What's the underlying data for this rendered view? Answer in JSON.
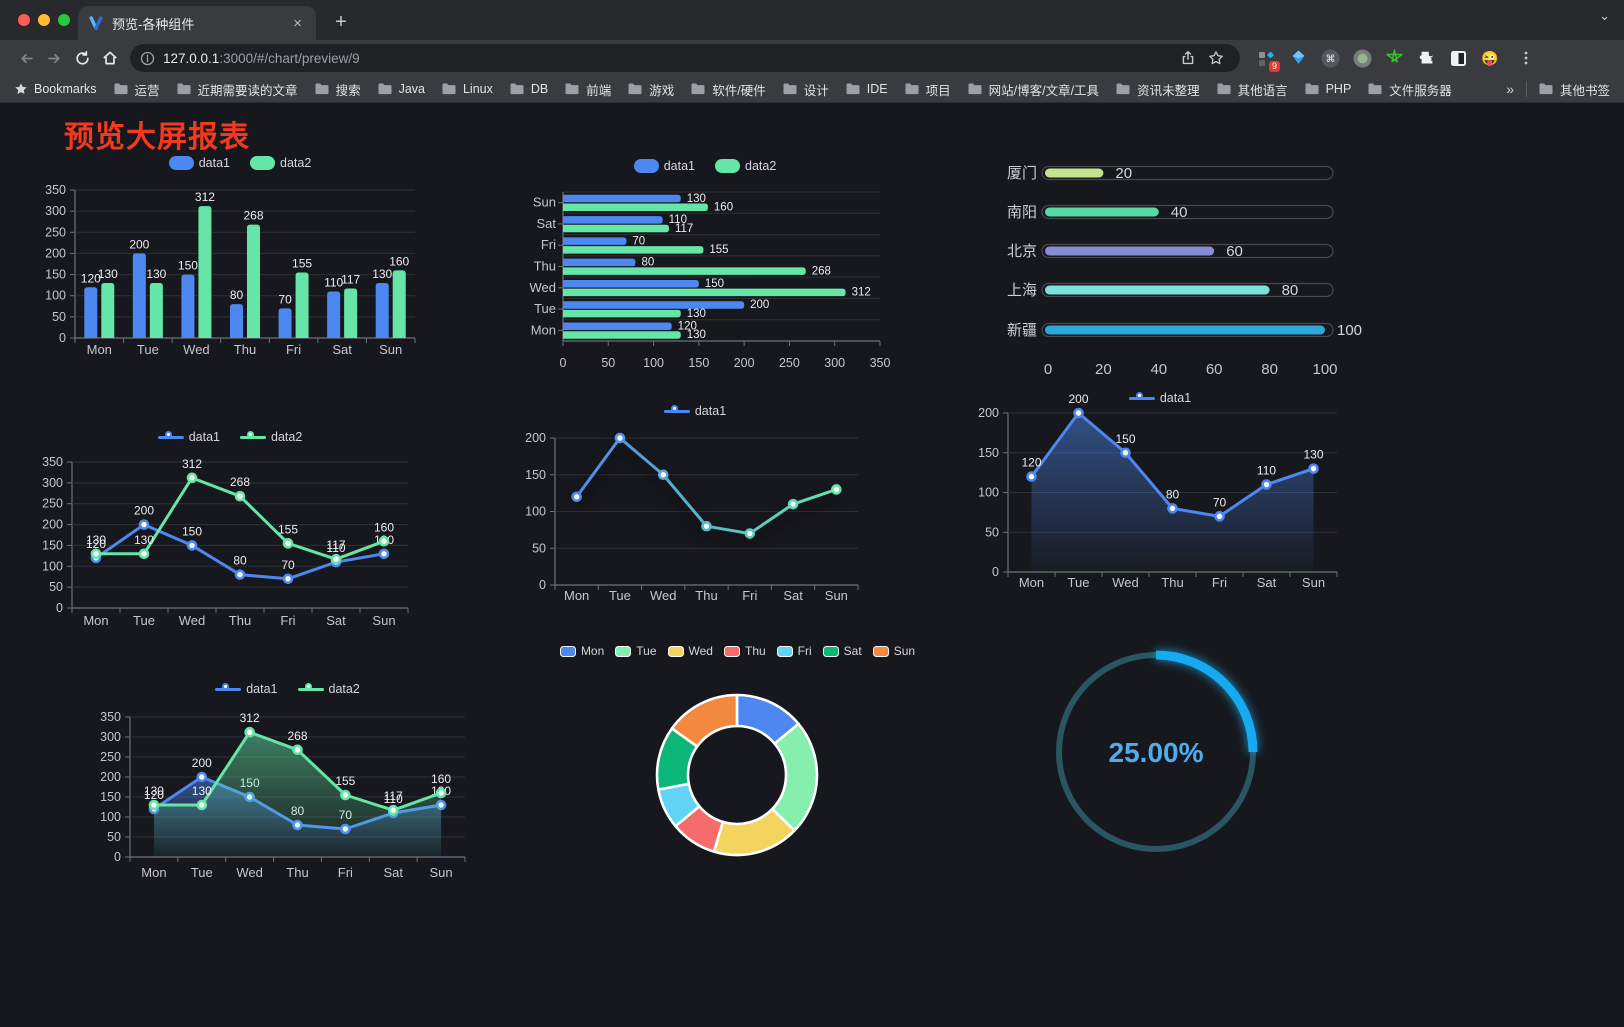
{
  "browser": {
    "traffic_lights": [
      "#ff5f57",
      "#febc2e",
      "#28c840"
    ],
    "tab": {
      "title": "预览-各种组件",
      "close": "×"
    },
    "new_tab": "+",
    "url_host": "127.0.0.1",
    "url_rest": ":3000/#/chart/preview/9",
    "extensions_badge": "9",
    "bookmarks_bar": {
      "star_label": "Bookmarks",
      "folders": [
        "运营",
        "近期需要读的文章",
        "搜索",
        "Java",
        "Linux",
        "DB",
        "前端",
        "游戏",
        "软件/硬件",
        "设计",
        "IDE",
        "项目",
        "网站/博客/文章/工具",
        "资讯未整理",
        "其他语言",
        "PHP",
        "文件服务器"
      ],
      "overflow": "»",
      "other": "其他书签"
    }
  },
  "page": {
    "heading": "预览大屏报表",
    "heading_color": "#f5391f",
    "background": "#17181d"
  },
  "chart_data": [
    {
      "id": "bar-grouped",
      "type": "bar",
      "categories": [
        "Mon",
        "Tue",
        "Wed",
        "Thu",
        "Fri",
        "Sat",
        "Sun"
      ],
      "series": [
        {
          "name": "data1",
          "color": "#4d88f0",
          "values": [
            120,
            200,
            150,
            80,
            70,
            110,
            130
          ]
        },
        {
          "name": "data2",
          "color": "#65e6a7",
          "values": [
            130,
            130,
            312,
            268,
            155,
            117,
            160
          ]
        }
      ],
      "ylim": [
        0,
        350
      ],
      "ytick": 50,
      "labels": true,
      "grid": true,
      "legend_position": "top"
    },
    {
      "id": "bar-horizontal",
      "type": "hbar",
      "categories": [
        "Mon",
        "Tue",
        "Wed",
        "Thu",
        "Fri",
        "Sat",
        "Sun"
      ],
      "series": [
        {
          "name": "data1",
          "color": "#4d88f0",
          "values": [
            120,
            200,
            150,
            80,
            70,
            110,
            130
          ]
        },
        {
          "name": "data2",
          "color": "#65e6a7",
          "values": [
            130,
            130,
            312,
            268,
            155,
            117,
            160
          ]
        }
      ],
      "xlim": [
        0,
        350
      ],
      "xtick": 50,
      "labels": true,
      "grid": true,
      "legend_position": "top"
    },
    {
      "id": "progress-bars",
      "type": "progress",
      "rows": [
        {
          "label": "厦门",
          "value": 20,
          "color": "#c5e38b"
        },
        {
          "label": "南阳",
          "value": 40,
          "color": "#57d8a5"
        },
        {
          "label": "北京",
          "value": 60,
          "color": "#868dd6"
        },
        {
          "label": "上海",
          "value": 80,
          "color": "#7ce0dd"
        },
        {
          "label": "新疆",
          "value": 100,
          "color": "#2ea7dd"
        }
      ],
      "xlim": [
        0,
        100
      ],
      "xticks": [
        0,
        20,
        40,
        60,
        80,
        100
      ]
    },
    {
      "id": "line-two-series",
      "type": "line",
      "categories": [
        "Mon",
        "Tue",
        "Wed",
        "Thu",
        "Fri",
        "Sat",
        "Sun"
      ],
      "series": [
        {
          "name": "data1",
          "color": "#4d88f0",
          "values": [
            120,
            200,
            150,
            80,
            70,
            110,
            130
          ]
        },
        {
          "name": "data2",
          "color": "#65e6a7",
          "values": [
            130,
            130,
            312,
            268,
            155,
            117,
            160
          ]
        }
      ],
      "ylim": [
        0,
        350
      ],
      "ytick": 50,
      "labels": true,
      "grid": true,
      "legend_position": "top"
    },
    {
      "id": "line-gradient",
      "type": "line",
      "categories": [
        "Mon",
        "Tue",
        "Wed",
        "Thu",
        "Fri",
        "Sat",
        "Sun"
      ],
      "series": [
        {
          "name": "data1",
          "color": "#4d88f0",
          "values": [
            120,
            200,
            150,
            80,
            70,
            110,
            130
          ]
        }
      ],
      "gradient": [
        "#4d88f0",
        "#65e6a7"
      ],
      "ylim": [
        0,
        200
      ],
      "ytick": 50,
      "labels": false,
      "grid": true,
      "legend_position": "top"
    },
    {
      "id": "area-single",
      "type": "line",
      "categories": [
        "Mon",
        "Tue",
        "Wed",
        "Thu",
        "Fri",
        "Sat",
        "Sun"
      ],
      "series": [
        {
          "name": "data1",
          "color": "#4d88f0",
          "values": [
            120,
            200,
            150,
            80,
            70,
            110,
            130
          ],
          "area": true
        }
      ],
      "ylim": [
        0,
        200
      ],
      "ytick": 50,
      "labels": true,
      "grid": true,
      "legend_position": "top"
    },
    {
      "id": "area-two-series",
      "type": "line",
      "categories": [
        "Mon",
        "Tue",
        "Wed",
        "Thu",
        "Fri",
        "Sat",
        "Sun"
      ],
      "series": [
        {
          "name": "data1",
          "color": "#4d88f0",
          "values": [
            120,
            200,
            150,
            80,
            70,
            110,
            130
          ],
          "area": true
        },
        {
          "name": "data2",
          "color": "#65e6a7",
          "values": [
            130,
            130,
            312,
            268,
            155,
            117,
            160
          ],
          "area": true
        }
      ],
      "ylim": [
        0,
        350
      ],
      "ytick": 50,
      "labels": true,
      "grid": true,
      "legend_position": "top"
    },
    {
      "id": "donut",
      "type": "donut",
      "items": [
        {
          "label": "Mon",
          "value": 120,
          "color": "#4e87f0"
        },
        {
          "label": "Tue",
          "value": 200,
          "color": "#86efae"
        },
        {
          "label": "Wed",
          "value": 150,
          "color": "#f2d45f"
        },
        {
          "label": "Thu",
          "value": 80,
          "color": "#f56c6c"
        },
        {
          "label": "Fri",
          "value": 70,
          "color": "#61d3f5"
        },
        {
          "label": "Sat",
          "value": 110,
          "color": "#0cb578"
        },
        {
          "label": "Sun",
          "value": 130,
          "color": "#f2893e"
        }
      ],
      "legend_position": "top"
    },
    {
      "id": "gauge",
      "type": "gauge",
      "value": 25,
      "display": "25.00%",
      "arc_color": "#17aaf0",
      "track_color": "#2a5563",
      "text_color": "#4fadee"
    }
  ]
}
